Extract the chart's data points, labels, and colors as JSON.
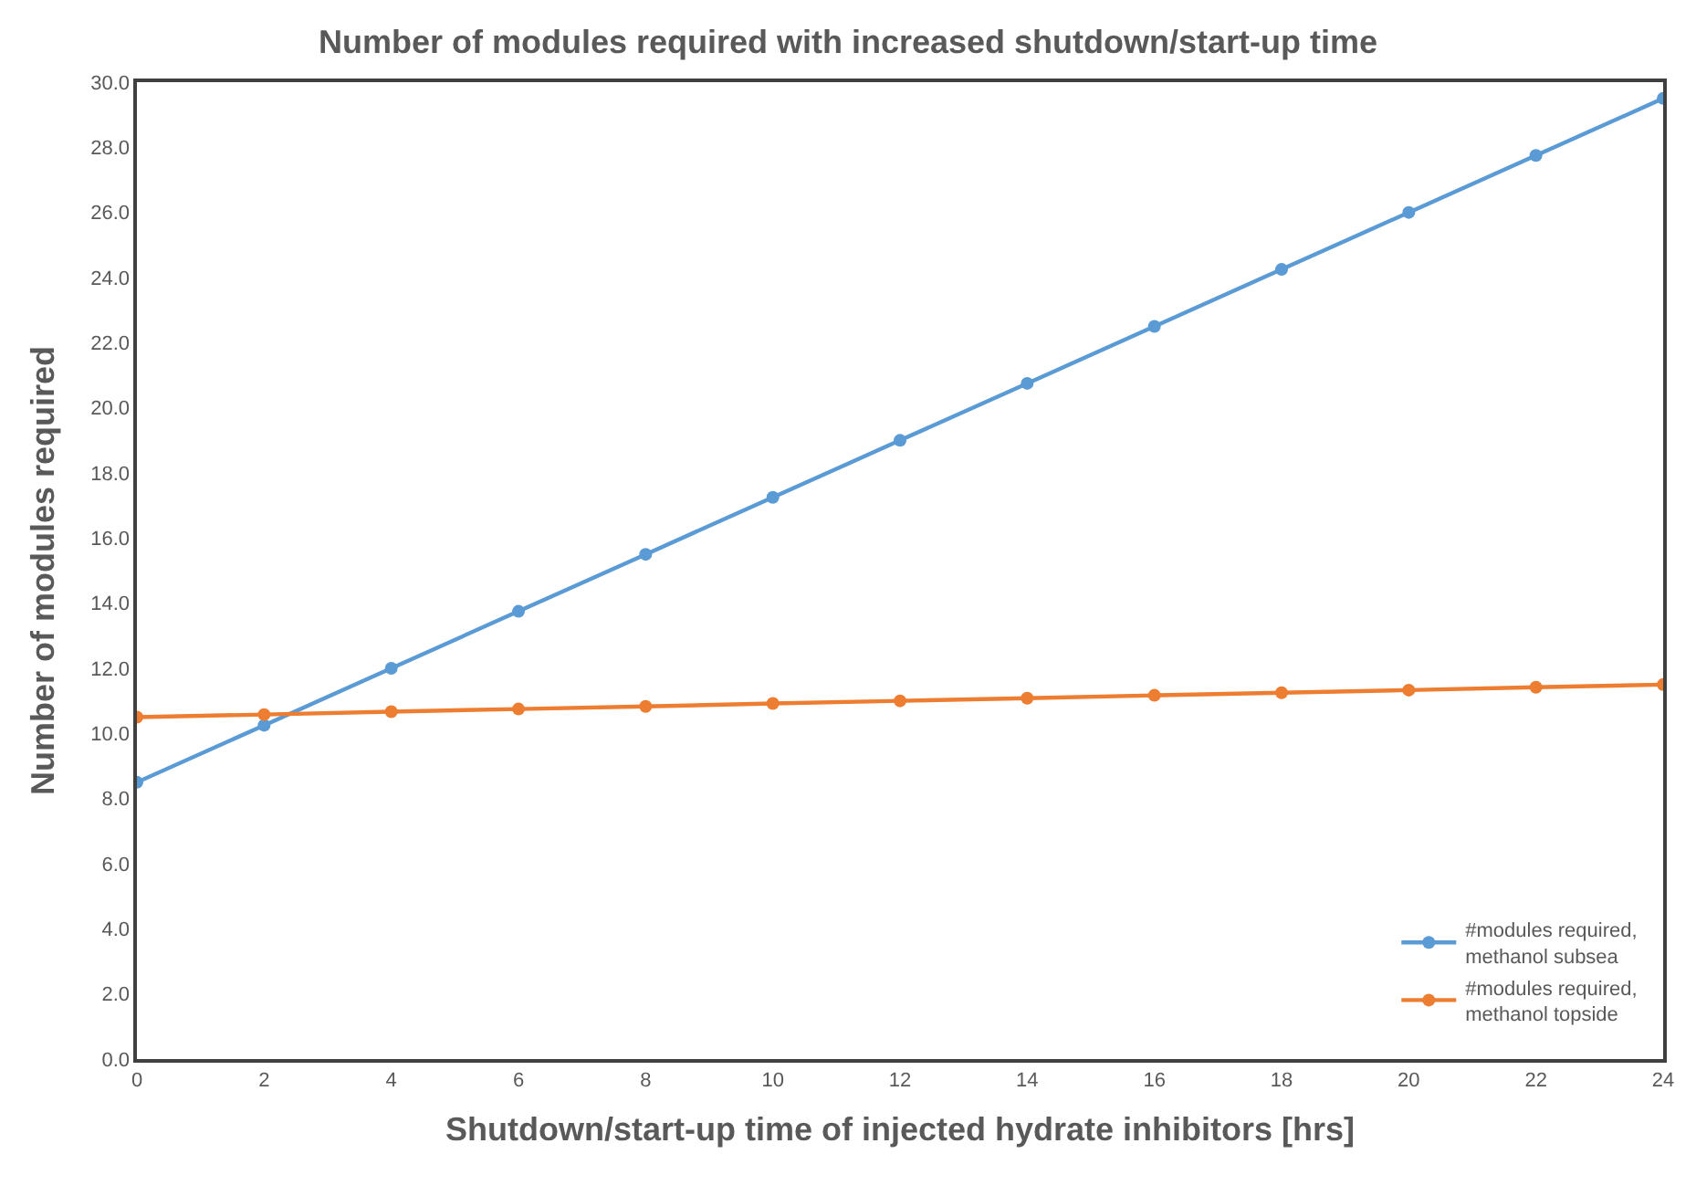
{
  "chart_data": {
    "type": "line",
    "title": "Number of modules required with increased shutdown/start-up time",
    "xlabel": "Shutdown/start-up time of injected hydrate inhibitors [hrs]",
    "ylabel": "Number of modules required",
    "x": [
      0,
      2,
      4,
      6,
      8,
      10,
      12,
      14,
      16,
      18,
      20,
      22,
      24
    ],
    "series": [
      {
        "name": "#modules required,\nmethanol subsea",
        "color": "#5b9bd5",
        "values": [
          8.5,
          10.25,
          12.0,
          13.75,
          15.5,
          17.25,
          19.0,
          20.75,
          22.5,
          24.25,
          26.0,
          27.75,
          29.5
        ]
      },
      {
        "name": "#modules required,\nmethanol topside",
        "color": "#ed7d31",
        "values": [
          10.5,
          10.58,
          10.67,
          10.75,
          10.83,
          10.92,
          11.0,
          11.08,
          11.17,
          11.25,
          11.33,
          11.42,
          11.5
        ]
      }
    ],
    "xlim": [
      0,
      24
    ],
    "xticks": [
      0,
      2,
      4,
      6,
      8,
      10,
      12,
      14,
      16,
      18,
      20,
      22,
      24
    ],
    "ylim": [
      0,
      30
    ],
    "yticks": [
      {
        "value": 0,
        "label": "0.0"
      },
      {
        "value": 2,
        "label": "2.0"
      },
      {
        "value": 4,
        "label": "4.0"
      },
      {
        "value": 6,
        "label": "6.0"
      },
      {
        "value": 8,
        "label": "8.0"
      },
      {
        "value": 10,
        "label": "10.0"
      },
      {
        "value": 12,
        "label": "12.0"
      },
      {
        "value": 14,
        "label": "14.0"
      },
      {
        "value": 16,
        "label": "16.0"
      },
      {
        "value": 18,
        "label": "18.0"
      },
      {
        "value": 20,
        "label": "20.0"
      },
      {
        "value": 22,
        "label": "22.0"
      },
      {
        "value": 24,
        "label": "24.0"
      },
      {
        "value": 26,
        "label": "26.0"
      },
      {
        "value": 28,
        "label": "28.0"
      },
      {
        "value": 30,
        "label": "30.0"
      }
    ],
    "legend": "bottom right",
    "marker": "circle",
    "line_style": "solid"
  }
}
